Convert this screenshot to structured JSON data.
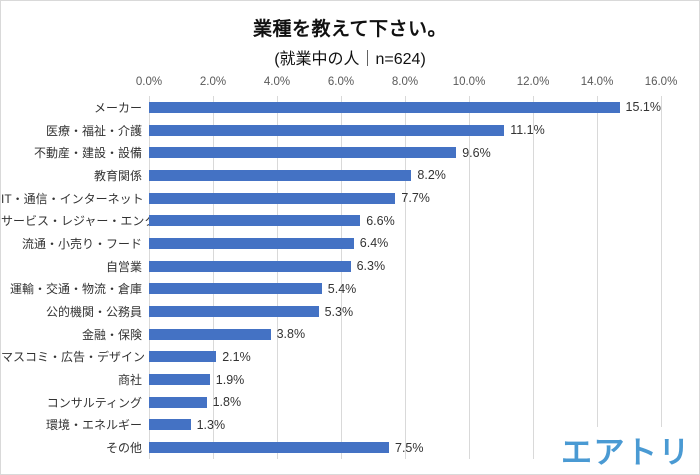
{
  "page": {
    "background": "#ffffff",
    "border_color": "#d9d9d9"
  },
  "chart_data": {
    "type": "bar",
    "orientation": "horizontal",
    "title": "業種を教えて下さい。",
    "subtitle": "(就業中の人｜n=624)",
    "x_ticks": [
      "0.0%",
      "2.0%",
      "4.0%",
      "6.0%",
      "8.0%",
      "10.0%",
      "12.0%",
      "14.0%",
      "16.0%"
    ],
    "xlim": [
      0,
      16
    ],
    "grid": true,
    "legend": "none",
    "bar_color": "#4472C4",
    "gridline_color": "#d9d9d9",
    "tick_label_color": "#595959",
    "label_color": "#333333",
    "categories": [
      "メーカー",
      "医療・福祉・介護",
      "不動産・建設・設備",
      "教育関係",
      "IT・通信・インターネット",
      "サービス・レジャー・エンタメ",
      "流通・小売り・フード",
      "自営業",
      "運輸・交通・物流・倉庫",
      "公的機関・公務員",
      "金融・保険",
      "マスコミ・広告・デザイン",
      "商社",
      "コンサルティング",
      "環境・エネルギー",
      "その他"
    ],
    "values": [
      15.1,
      11.1,
      9.6,
      8.2,
      7.7,
      6.6,
      6.4,
      6.3,
      5.4,
      5.3,
      3.8,
      2.1,
      1.9,
      1.8,
      1.3,
      7.5
    ],
    "value_labels": [
      "15.1%",
      "11.1%",
      "9.6%",
      "8.2%",
      "7.7%",
      "6.6%",
      "6.4%",
      "6.3%",
      "5.4%",
      "5.3%",
      "3.8%",
      "2.1%",
      "1.9%",
      "1.8%",
      "1.3%",
      "7.5%"
    ]
  },
  "branding": {
    "logo_text": "エアトリ",
    "logo_color": "#4A9AD3"
  }
}
